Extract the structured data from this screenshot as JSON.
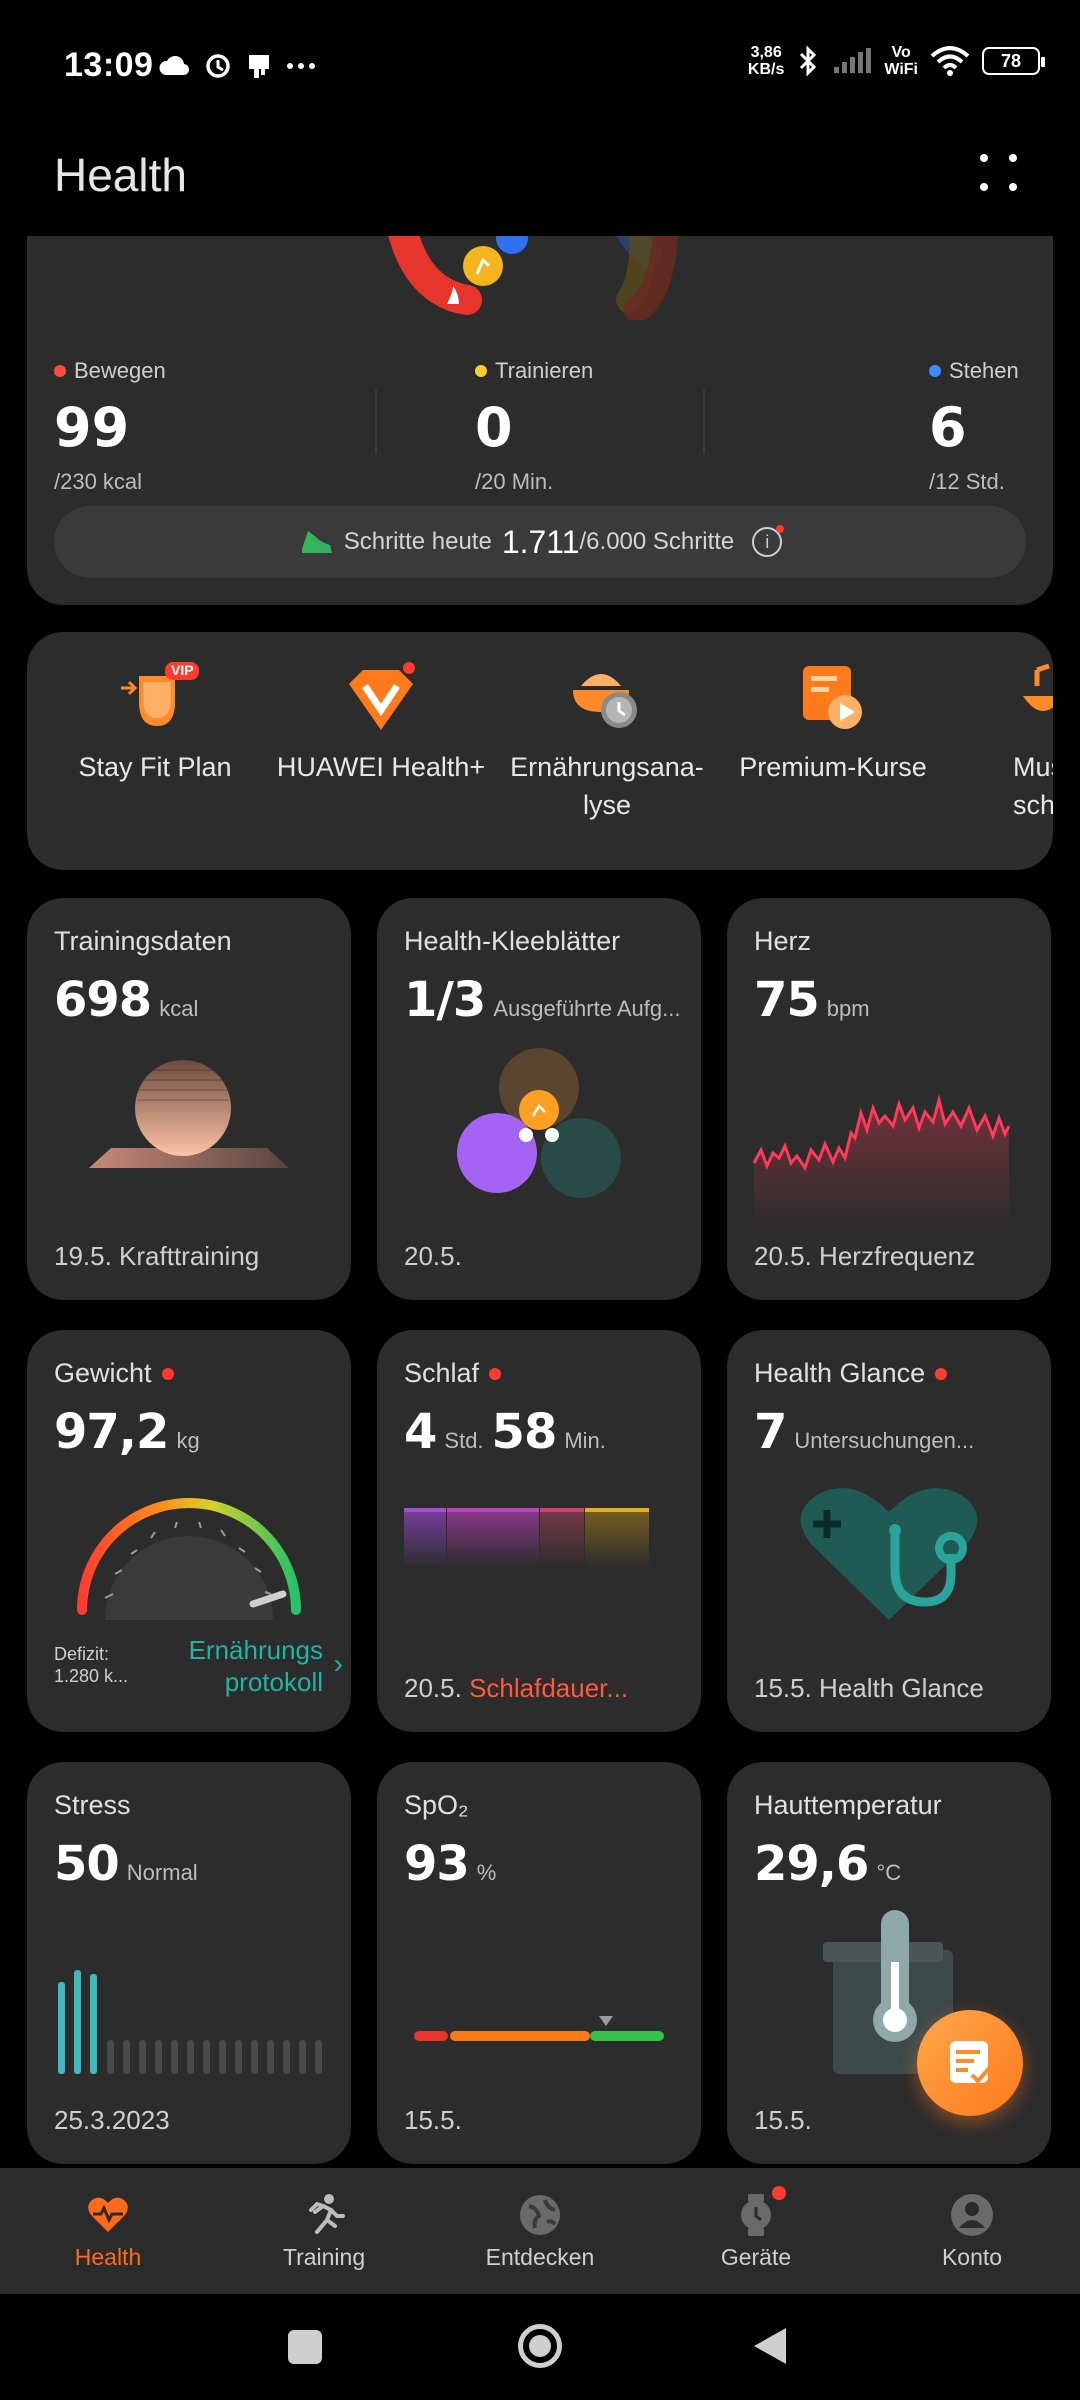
{
  "status_bar": {
    "time": "13:09",
    "speed_value": "3,86",
    "speed_unit": "KB/s",
    "wifi_label_top": "Vo",
    "wifi_label_bottom": "WiFi",
    "battery": "78",
    "icons": [
      "cloud-icon",
      "sync-icon",
      "sim-icon",
      "more-icon",
      "bluetooth-icon",
      "signal-icon",
      "wifi-icon",
      "battery-icon"
    ]
  },
  "header": {
    "title": "Health"
  },
  "activity": {
    "move": {
      "label": "Bewegen",
      "value": "99",
      "unit": "/230 kcal",
      "color": "#ff4a3d"
    },
    "exercise": {
      "label": "Trainieren",
      "value": "0",
      "unit": "/20 Min.",
      "color": "#ffcc2e"
    },
    "stand": {
      "label": "Stehen",
      "value": "6",
      "unit": "/12 Std.",
      "color": "#3d8bff"
    },
    "steps": {
      "label": "Schritte heute",
      "value": "1.711",
      "goal": "/6.000 Schritte"
    }
  },
  "services": [
    {
      "label": "Stay Fit Plan",
      "badge": "VIP"
    },
    {
      "label": "HUAWEI Health+"
    },
    {
      "label": "Ernährungsana-\nlyse"
    },
    {
      "label": "Premium-Kurse"
    },
    {
      "label": "Musik\nschl"
    }
  ],
  "tiles": {
    "training": {
      "title": "Trainingsdaten",
      "value": "698",
      "unit": "kcal",
      "footer": "19.5. Krafttraining"
    },
    "clover": {
      "title": "Health-Kleeblätter",
      "value": "1/3",
      "unit": "Ausgeführte Aufg...",
      "footer": "20.5."
    },
    "heart": {
      "title": "Herz",
      "value": "75",
      "unit": "bpm",
      "footer": "20.5. Herzfrequenz"
    },
    "weight": {
      "title": "Gewicht",
      "value": "97,2",
      "unit": "kg",
      "deficit_label": "Defizit:",
      "deficit_value": "1.280 k...",
      "link_line1": "Ernährungs",
      "link_line2": "protokoll"
    },
    "sleep": {
      "title": "Schlaf",
      "hours": "4",
      "hours_unit": "Std.",
      "minutes": "58",
      "minutes_unit": "Min.",
      "footer_date": "20.5.",
      "footer_link": "Schlafdauer..."
    },
    "glance": {
      "title": "Health Glance",
      "value": "7",
      "unit": "Untersuchungen...",
      "footer": "15.5. Health Glance"
    },
    "stress": {
      "title": "Stress",
      "value": "50",
      "unit": "Normal",
      "footer": "25.3.2023"
    },
    "spo2": {
      "title": "SpO₂",
      "value": "93",
      "unit": "%",
      "footer": "15.5."
    },
    "skin": {
      "title": "Hauttemperatur",
      "value": "29,6",
      "unit": "°C",
      "footer": "15.5."
    }
  },
  "bottom_nav": [
    {
      "label": "Health",
      "active": true
    },
    {
      "label": "Training"
    },
    {
      "label": "Entdecken"
    },
    {
      "label": "Geräte",
      "badge": true
    },
    {
      "label": "Konto"
    }
  ],
  "colors": {
    "accent": "#ff6a1a",
    "card": "#2c2c2c",
    "link_teal": "#22b3a3",
    "link_red": "#ff5a3d"
  }
}
